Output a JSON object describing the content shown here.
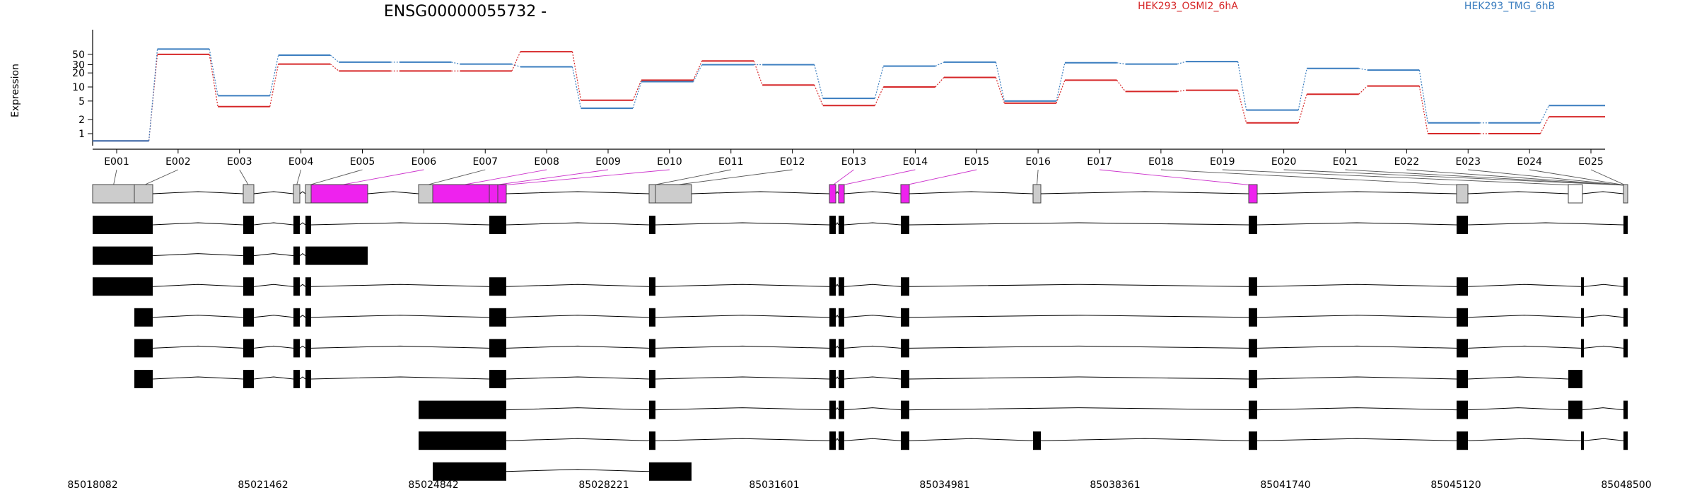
{
  "chart_data": {
    "type": "line",
    "title": "ENSG00000055732 -",
    "ylabel": "Expression",
    "y_scale": "log",
    "y_ticks": [
      "1",
      "2",
      "5",
      "10",
      "20",
      "30",
      "50"
    ],
    "categories": [
      "E001",
      "E002",
      "E003",
      "E004",
      "E005",
      "E006",
      "E007",
      "E008",
      "E009",
      "E010",
      "E011",
      "E012",
      "E013",
      "E014",
      "E015",
      "E016",
      "E017",
      "E018",
      "E019",
      "E020",
      "E021",
      "E022",
      "E023",
      "E024",
      "E025"
    ],
    "series": [
      {
        "name": "HEK293_OSMI2_6hA",
        "color": "#d62728",
        "values": [
          0.7,
          50,
          3.8,
          31,
          22,
          22,
          22,
          57,
          5.2,
          14,
          36,
          11,
          4,
          10,
          16,
          4.5,
          14,
          8,
          8.5,
          1.7,
          7,
          10.5,
          1,
          1,
          2.3
        ]
      },
      {
        "name": "HEK293_TMG_6hB",
        "color": "#3a7dbf",
        "values": [
          0.7,
          65,
          6.5,
          48,
          34,
          34,
          31,
          27,
          3.5,
          13,
          30,
          30,
          5.7,
          28,
          34,
          5,
          33,
          31,
          35,
          3.2,
          25,
          23,
          1.7,
          1.7,
          4
        ]
      }
    ],
    "genomic_axis_labels": [
      "85018082",
      "85021462",
      "85024842",
      "85028221",
      "85031601",
      "85034981",
      "85038361",
      "85041740",
      "85045120",
      "85048500"
    ]
  }
}
